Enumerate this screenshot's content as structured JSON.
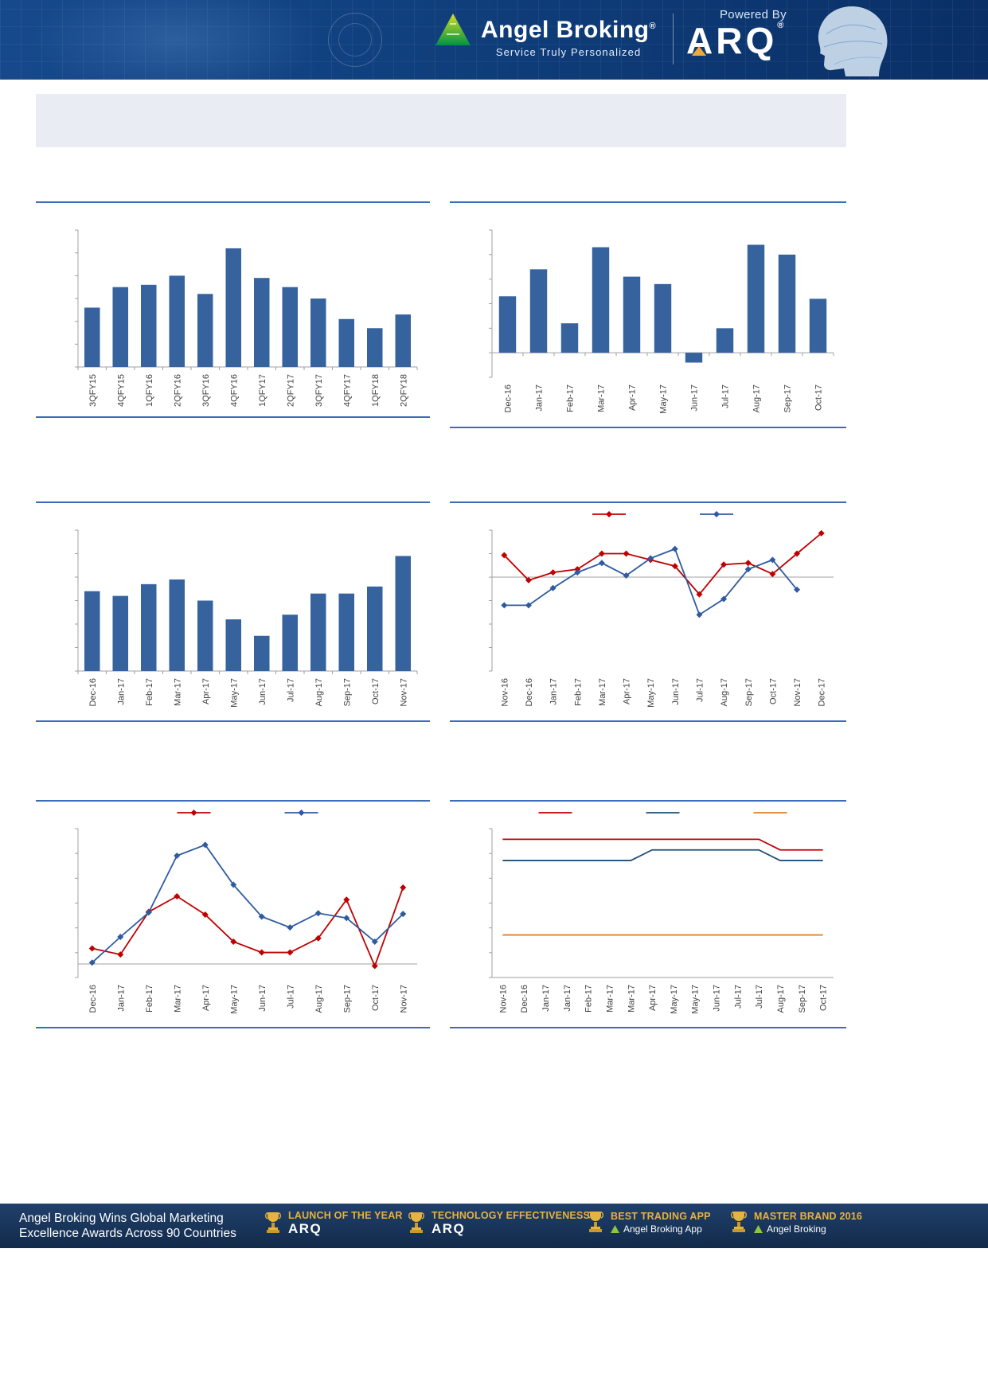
{
  "header": {
    "brand_name": "Angel Broking",
    "brand_reg": "®",
    "tagline": "Service Truly Personalized",
    "powered_by": "Powered By",
    "arq_logo": "ARQ",
    "arq_reg": "®"
  },
  "palette": {
    "bar_blue": "#36639e",
    "line_red": "#c00000",
    "line_blue": "#2e5b9f",
    "line_navy": "#1f4e79",
    "line_orange": "#e0821f",
    "axis_gray": "#a0a0a0",
    "label_gray": "#404040",
    "rule_blue": "#3a6db5",
    "award_gold": "#e9b13b"
  },
  "chart_data": [
    {
      "type": "bar",
      "categories": [
        "3QFY15",
        "4QFY15",
        "1QFY16",
        "2QFY16",
        "3QFY16",
        "4QFY16",
        "1QFY17",
        "2QFY17",
        "3QFY17",
        "4QFY17",
        "1QFY18",
        "2QFY18"
      ],
      "values": [
        6.6,
        7.5,
        7.6,
        8.0,
        7.2,
        9.2,
        7.9,
        7.5,
        7.0,
        6.1,
        5.7,
        6.3
      ],
      "ylim": [
        4,
        10
      ],
      "bar_color": "#36639e",
      "grid": false,
      "legend": false
    },
    {
      "type": "bar",
      "categories": [
        "Dec-16",
        "Jan-17",
        "Feb-17",
        "Mar-17",
        "Apr-17",
        "May-17",
        "Jun-17",
        "Jul-17",
        "Aug-17",
        "Sep-17",
        "Oct-17"
      ],
      "values": [
        2.3,
        3.4,
        1.2,
        4.3,
        3.1,
        2.8,
        -0.4,
        1.0,
        4.4,
        4.0,
        2.2
      ],
      "ylim": [
        -1,
        5
      ],
      "bar_color": "#36639e",
      "grid": false,
      "legend": false
    },
    {
      "type": "bar",
      "categories": [
        "Dec-16",
        "Jan-17",
        "Feb-17",
        "Mar-17",
        "Apr-17",
        "May-17",
        "Jun-17",
        "Jul-17",
        "Aug-17",
        "Sep-17",
        "Oct-17",
        "Nov-17"
      ],
      "values": [
        3.4,
        3.2,
        3.7,
        3.9,
        3.0,
        2.2,
        1.5,
        2.4,
        3.3,
        3.3,
        3.6,
        4.9
      ],
      "ylim": [
        0,
        6
      ],
      "bar_color": "#36639e",
      "grid": false,
      "legend": false
    },
    {
      "type": "line",
      "markers": true,
      "legend": true,
      "categories": [
        "Nov-16",
        "Dec-16",
        "Jan-17",
        "Feb-17",
        "Mar-17",
        "Apr-17",
        "May-17",
        "Jun-17",
        "Jul-17",
        "Aug-17",
        "Sep-17",
        "Oct-17",
        "Nov-17",
        "Dec-17"
      ],
      "ylim": [
        -6,
        3
      ],
      "series": [
        {
          "name": "red-series",
          "color": "#c00000",
          "values": [
            1.4,
            -0.2,
            0.3,
            0.5,
            1.5,
            1.5,
            1.1,
            0.7,
            -1.1,
            0.8,
            0.9,
            0.2,
            1.5,
            2.8
          ]
        },
        {
          "name": "blue-series",
          "color": "#2e5b9f",
          "values": [
            -1.8,
            -1.8,
            -0.7,
            0.3,
            0.9,
            0.1,
            1.2,
            1.8,
            -2.4,
            -1.4,
            0.5,
            1.1,
            -0.8,
            null
          ]
        }
      ],
      "grid": false
    },
    {
      "type": "line",
      "markers": true,
      "legend": true,
      "categories": [
        "Dec-16",
        "Jan-17",
        "Feb-17",
        "Mar-17",
        "Apr-17",
        "May-17",
        "Jun-17",
        "Jul-17",
        "Aug-17",
        "Sep-17",
        "Oct-17",
        "Nov-17"
      ],
      "ylim": [
        -0.2,
        2.0
      ],
      "series": [
        {
          "name": "red-series",
          "color": "#c00000",
          "values": [
            0.23,
            0.14,
            0.77,
            1.0,
            0.73,
            0.33,
            0.17,
            0.17,
            0.38,
            0.95,
            -0.03,
            1.13
          ]
        },
        {
          "name": "blue-series",
          "color": "#2e5b9f",
          "values": [
            0.02,
            0.4,
            0.76,
            1.6,
            1.76,
            1.17,
            0.7,
            0.54,
            0.75,
            0.68,
            0.33,
            0.74
          ]
        }
      ],
      "grid": false
    },
    {
      "type": "line",
      "markers": false,
      "legend": true,
      "categories": [
        "Nov-16",
        "Dec-16",
        "Jan-17",
        "Jan-17",
        "Feb-17",
        "Mar-17",
        "Mar-17",
        "Apr-17",
        "May-17",
        "May-17",
        "Jun-17",
        "Jul-17",
        "Jul-17",
        "Aug-17",
        "Sep-17",
        "Oct-17"
      ],
      "ylim": [
        3,
        6.5
      ],
      "series": [
        {
          "name": "red-series",
          "color": "#c00000",
          "values": [
            6.25,
            6.25,
            6.25,
            6.25,
            6.25,
            6.25,
            6.25,
            6.25,
            6.25,
            6.25,
            6.25,
            6.25,
            6.25,
            6.0,
            6.0,
            6.0
          ]
        },
        {
          "name": "navy-series",
          "color": "#1f4e79",
          "values": [
            5.75,
            5.75,
            5.75,
            5.75,
            5.75,
            5.75,
            5.75,
            6.0,
            6.0,
            6.0,
            6.0,
            6.0,
            6.0,
            5.75,
            5.75,
            5.75
          ]
        },
        {
          "name": "orange-series",
          "color": "#e0821f",
          "values": [
            4.0,
            4.0,
            4.0,
            4.0,
            4.0,
            4.0,
            4.0,
            4.0,
            4.0,
            4.0,
            4.0,
            4.0,
            4.0,
            4.0,
            4.0,
            4.0
          ]
        }
      ],
      "grid": false
    }
  ],
  "footer": {
    "headline_line1": "Angel Broking Wins Global Marketing",
    "headline_line2": "Excellence Awards Across 90 Countries",
    "awards": [
      {
        "title": "LAUNCH OF THE YEAR",
        "subtitle": "ARQ"
      },
      {
        "title": "TECHNOLOGY EFFECTIVENESS",
        "subtitle": "ARQ"
      },
      {
        "title": "BEST TRADING APP",
        "subtitle": "Angel Broking App"
      },
      {
        "title": "MASTER BRAND 2016",
        "subtitle": "Angel Broking"
      }
    ]
  }
}
